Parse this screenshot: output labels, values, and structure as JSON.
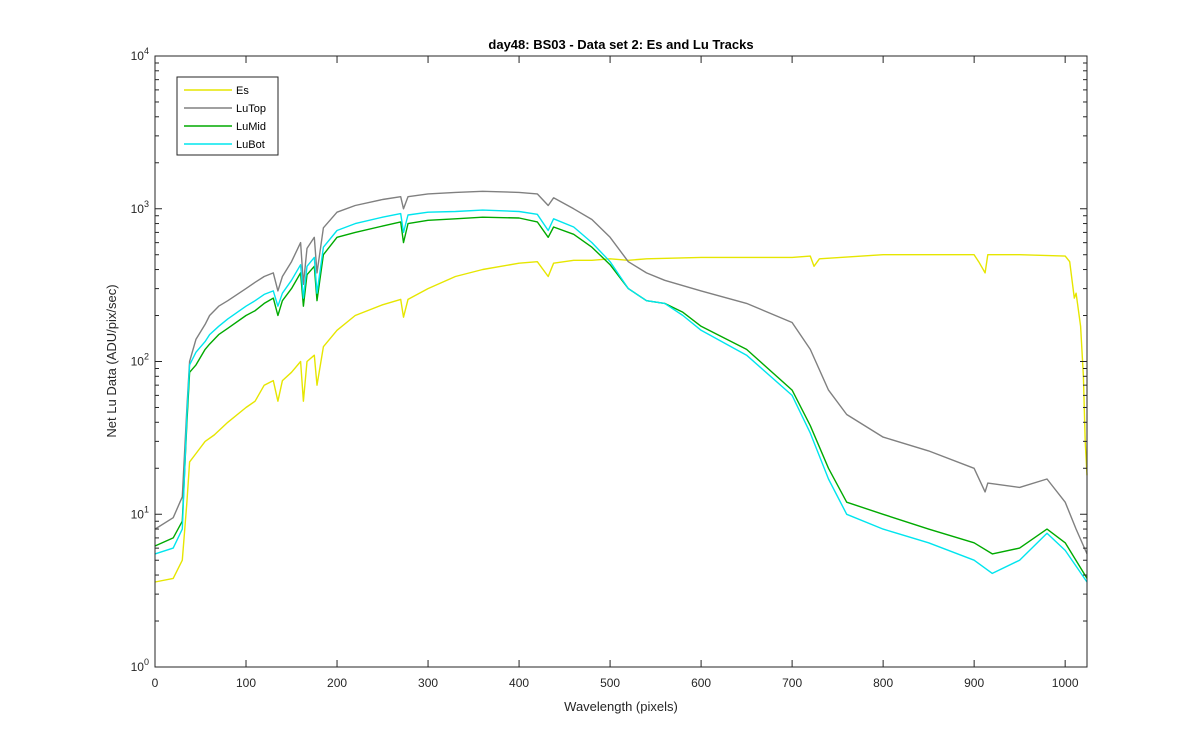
{
  "chart_data": {
    "type": "line",
    "title": "day48: BS03 - Data set 2: Es and Lu Tracks",
    "xlabel": "Wavelength (pixels)",
    "ylabel": "Net Lu Data (ADU/pix/sec)",
    "xlim": [
      0,
      1024
    ],
    "ylim": [
      1,
      10000
    ],
    "y_scale": "log",
    "grid": false,
    "legend_position": "top-left",
    "x_ticks": [
      "0",
      "100",
      "200",
      "300",
      "400",
      "500",
      "600",
      "700",
      "800",
      "900",
      "1000"
    ],
    "y_ticks": [
      {
        "base": "10",
        "exp": "0"
      },
      {
        "base": "10",
        "exp": "1"
      },
      {
        "base": "10",
        "exp": "2"
      },
      {
        "base": "10",
        "exp": "3"
      },
      {
        "base": "10",
        "exp": "4"
      }
    ],
    "series": [
      {
        "name": "Es",
        "color": "#e6e600",
        "points": [
          [
            0,
            3.6
          ],
          [
            20,
            3.8
          ],
          [
            30,
            5
          ],
          [
            35,
            12
          ],
          [
            38,
            22
          ],
          [
            45,
            25
          ],
          [
            55,
            30
          ],
          [
            65,
            33
          ],
          [
            80,
            40
          ],
          [
            100,
            50
          ],
          [
            110,
            55
          ],
          [
            120,
            70
          ],
          [
            130,
            75
          ],
          [
            135,
            55
          ],
          [
            140,
            75
          ],
          [
            150,
            85
          ],
          [
            160,
            100
          ],
          [
            163,
            55
          ],
          [
            167,
            100
          ],
          [
            175,
            110
          ],
          [
            178,
            70
          ],
          [
            185,
            125
          ],
          [
            200,
            160
          ],
          [
            220,
            200
          ],
          [
            250,
            235
          ],
          [
            270,
            255
          ],
          [
            273,
            195
          ],
          [
            278,
            255
          ],
          [
            300,
            300
          ],
          [
            330,
            360
          ],
          [
            360,
            400
          ],
          [
            400,
            440
          ],
          [
            420,
            450
          ],
          [
            432,
            360
          ],
          [
            438,
            440
          ],
          [
            460,
            460
          ],
          [
            480,
            460
          ],
          [
            500,
            470
          ],
          [
            520,
            460
          ],
          [
            540,
            470
          ],
          [
            600,
            480
          ],
          [
            700,
            480
          ],
          [
            720,
            490
          ],
          [
            724,
            420
          ],
          [
            730,
            470
          ],
          [
            800,
            500
          ],
          [
            850,
            500
          ],
          [
            900,
            500
          ],
          [
            905,
            450
          ],
          [
            912,
            380
          ],
          [
            915,
            500
          ],
          [
            950,
            500
          ],
          [
            1000,
            490
          ],
          [
            1005,
            450
          ],
          [
            1010,
            260
          ],
          [
            1012,
            280
          ],
          [
            1017,
            170
          ],
          [
            1020,
            80
          ],
          [
            1022,
            30
          ],
          [
            1024,
            18
          ]
        ]
      },
      {
        "name": "LuTop",
        "color": "#808080",
        "points": [
          [
            0,
            8
          ],
          [
            20,
            9.5
          ],
          [
            30,
            13
          ],
          [
            35,
            50
          ],
          [
            38,
            100
          ],
          [
            45,
            140
          ],
          [
            55,
            175
          ],
          [
            60,
            200
          ],
          [
            70,
            230
          ],
          [
            80,
            250
          ],
          [
            100,
            300
          ],
          [
            110,
            330
          ],
          [
            120,
            360
          ],
          [
            130,
            380
          ],
          [
            135,
            290
          ],
          [
            140,
            360
          ],
          [
            150,
            450
          ],
          [
            160,
            600
          ],
          [
            163,
            320
          ],
          [
            167,
            550
          ],
          [
            175,
            650
          ],
          [
            178,
            380
          ],
          [
            185,
            750
          ],
          [
            200,
            950
          ],
          [
            220,
            1050
          ],
          [
            250,
            1150
          ],
          [
            270,
            1200
          ],
          [
            273,
            1000
          ],
          [
            278,
            1200
          ],
          [
            300,
            1250
          ],
          [
            330,
            1280
          ],
          [
            360,
            1300
          ],
          [
            400,
            1280
          ],
          [
            420,
            1250
          ],
          [
            432,
            1050
          ],
          [
            438,
            1180
          ],
          [
            460,
            1000
          ],
          [
            480,
            850
          ],
          [
            500,
            650
          ],
          [
            520,
            450
          ],
          [
            540,
            380
          ],
          [
            560,
            340
          ],
          [
            600,
            290
          ],
          [
            650,
            240
          ],
          [
            700,
            180
          ],
          [
            720,
            120
          ],
          [
            740,
            65
          ],
          [
            760,
            45
          ],
          [
            800,
            32
          ],
          [
            850,
            26
          ],
          [
            900,
            20
          ],
          [
            912,
            14
          ],
          [
            915,
            16
          ],
          [
            950,
            15
          ],
          [
            980,
            17
          ],
          [
            1000,
            12
          ],
          [
            1012,
            8
          ],
          [
            1024,
            5.5
          ]
        ]
      },
      {
        "name": "LuMid",
        "color": "#00aa00",
        "points": [
          [
            0,
            6.2
          ],
          [
            20,
            7
          ],
          [
            30,
            9
          ],
          [
            35,
            40
          ],
          [
            38,
            85
          ],
          [
            45,
            95
          ],
          [
            55,
            120
          ],
          [
            60,
            130
          ],
          [
            70,
            150
          ],
          [
            80,
            165
          ],
          [
            100,
            200
          ],
          [
            110,
            215
          ],
          [
            120,
            240
          ],
          [
            130,
            260
          ],
          [
            135,
            200
          ],
          [
            140,
            250
          ],
          [
            150,
            300
          ],
          [
            160,
            380
          ],
          [
            163,
            230
          ],
          [
            167,
            370
          ],
          [
            175,
            420
          ],
          [
            178,
            250
          ],
          [
            185,
            500
          ],
          [
            200,
            650
          ],
          [
            220,
            700
          ],
          [
            250,
            770
          ],
          [
            270,
            820
          ],
          [
            273,
            600
          ],
          [
            278,
            800
          ],
          [
            300,
            840
          ],
          [
            330,
            860
          ],
          [
            360,
            880
          ],
          [
            400,
            870
          ],
          [
            420,
            820
          ],
          [
            432,
            650
          ],
          [
            438,
            760
          ],
          [
            460,
            680
          ],
          [
            480,
            560
          ],
          [
            500,
            430
          ],
          [
            520,
            300
          ],
          [
            540,
            250
          ],
          [
            560,
            240
          ],
          [
            580,
            210
          ],
          [
            600,
            170
          ],
          [
            650,
            120
          ],
          [
            700,
            65
          ],
          [
            720,
            38
          ],
          [
            740,
            20
          ],
          [
            760,
            12
          ],
          [
            800,
            10
          ],
          [
            850,
            8
          ],
          [
            900,
            6.5
          ],
          [
            920,
            5.5
          ],
          [
            950,
            6
          ],
          [
            980,
            8
          ],
          [
            1000,
            6.5
          ],
          [
            1024,
            3.8
          ]
        ]
      },
      {
        "name": "LuBot",
        "color": "#00e5ee",
        "points": [
          [
            0,
            5.5
          ],
          [
            20,
            6
          ],
          [
            30,
            8
          ],
          [
            35,
            45
          ],
          [
            38,
            95
          ],
          [
            45,
            115
          ],
          [
            55,
            135
          ],
          [
            60,
            150
          ],
          [
            70,
            170
          ],
          [
            80,
            190
          ],
          [
            100,
            230
          ],
          [
            110,
            250
          ],
          [
            120,
            275
          ],
          [
            130,
            290
          ],
          [
            135,
            230
          ],
          [
            140,
            280
          ],
          [
            150,
            340
          ],
          [
            160,
            430
          ],
          [
            163,
            260
          ],
          [
            167,
            420
          ],
          [
            175,
            480
          ],
          [
            178,
            280
          ],
          [
            185,
            560
          ],
          [
            200,
            720
          ],
          [
            220,
            800
          ],
          [
            250,
            880
          ],
          [
            270,
            930
          ],
          [
            273,
            700
          ],
          [
            278,
            910
          ],
          [
            300,
            950
          ],
          [
            330,
            960
          ],
          [
            360,
            980
          ],
          [
            400,
            960
          ],
          [
            420,
            920
          ],
          [
            432,
            720
          ],
          [
            438,
            860
          ],
          [
            460,
            760
          ],
          [
            480,
            600
          ],
          [
            500,
            450
          ],
          [
            520,
            300
          ],
          [
            540,
            250
          ],
          [
            560,
            240
          ],
          [
            580,
            200
          ],
          [
            600,
            160
          ],
          [
            650,
            110
          ],
          [
            700,
            60
          ],
          [
            720,
            34
          ],
          [
            740,
            17
          ],
          [
            760,
            10
          ],
          [
            800,
            8
          ],
          [
            850,
            6.5
          ],
          [
            900,
            5
          ],
          [
            920,
            4.1
          ],
          [
            950,
            5
          ],
          [
            980,
            7.5
          ],
          [
            1000,
            5.8
          ],
          [
            1024,
            3.6
          ]
        ]
      }
    ]
  }
}
